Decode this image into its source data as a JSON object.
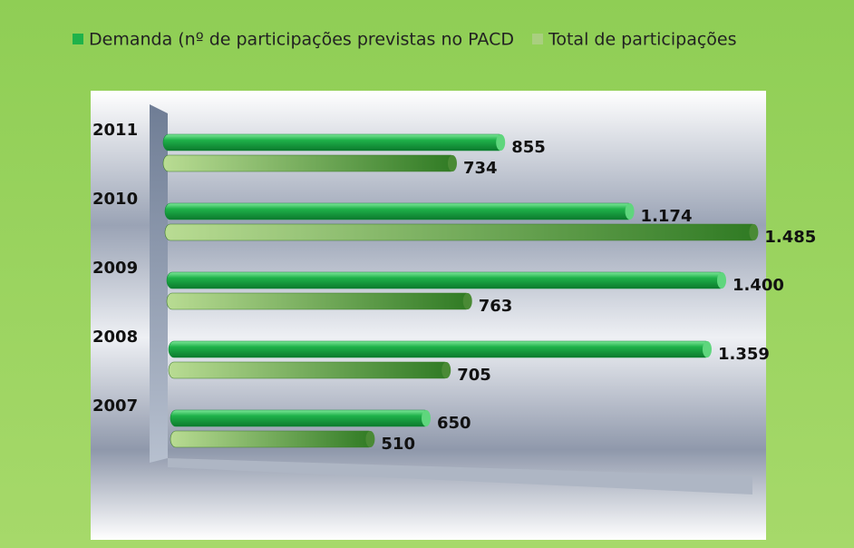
{
  "chart_data": {
    "type": "bar",
    "orientation": "horizontal",
    "categories": [
      "2011",
      "2010",
      "2009",
      "2008",
      "2007"
    ],
    "series": [
      {
        "name": "Demanda (nº de participações previstas no PACD",
        "color": "#1fb24a",
        "values": [
          855,
          1174,
          1400,
          1359,
          650
        ],
        "value_labels": [
          "855",
          "1.174",
          "1.400",
          "1.359",
          "650"
        ]
      },
      {
        "name": "Total de participações",
        "color": "#6aa84f",
        "values": [
          734,
          1485,
          763,
          705,
          510
        ],
        "value_labels": [
          "734",
          "1.485",
          "763",
          "705",
          "510"
        ]
      }
    ],
    "legend": "top"
  }
}
